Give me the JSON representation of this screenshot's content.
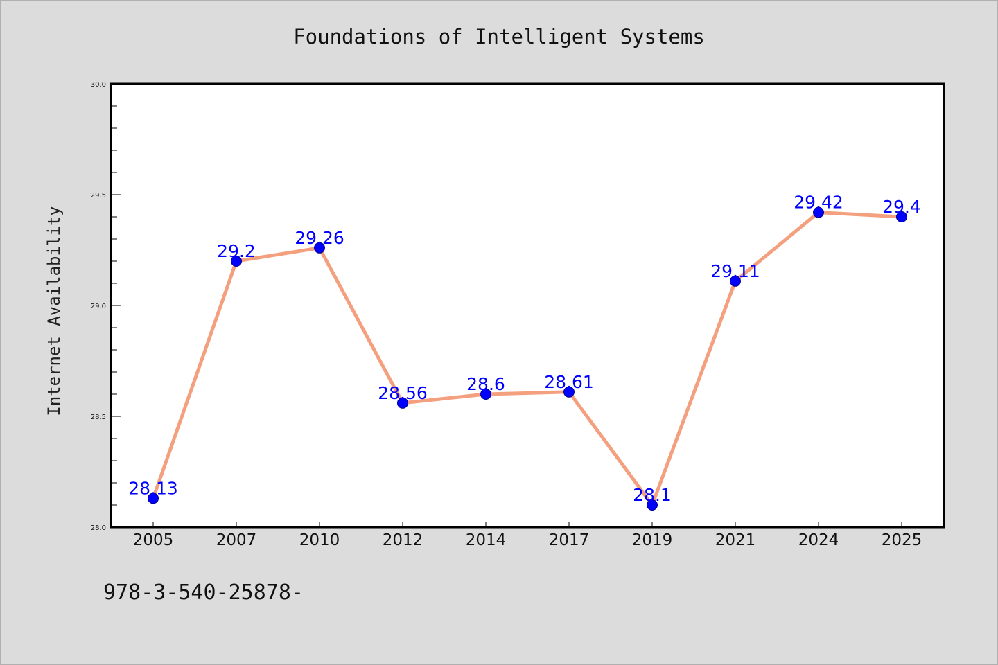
{
  "chart_data": {
    "type": "line",
    "title": "Foundations of Intelligent Systems",
    "xlabel": "",
    "ylabel": "Internet Availability",
    "categories": [
      "2005",
      "2007",
      "2010",
      "2012",
      "2014",
      "2017",
      "2019",
      "2021",
      "2024",
      "2025"
    ],
    "series": [
      {
        "values": [
          28.13,
          29.2,
          29.26,
          28.56,
          28.6,
          28.61,
          28.1,
          29.11,
          29.42,
          29.4
        ]
      }
    ],
    "data_labels": [
      "28.13",
      "29.2",
      "29.26",
      "28.56",
      "28.6",
      "28.61",
      "28.1",
      "29.11",
      "29.42",
      "29.4"
    ],
    "ylim": [
      28.0,
      30.0
    ],
    "yticks": [
      "28.0",
      "28.5",
      "29.0",
      "29.5",
      "30.0"
    ],
    "grid": false,
    "colors": {
      "line": "#f4a07e",
      "marker": "#0000ff",
      "marker_edge": "#00008b",
      "data_label": "#0000ff",
      "plot_background": "#ffffff",
      "figure_background": "#dcdcdc"
    }
  },
  "footer_text": "978-3-540-25878-"
}
